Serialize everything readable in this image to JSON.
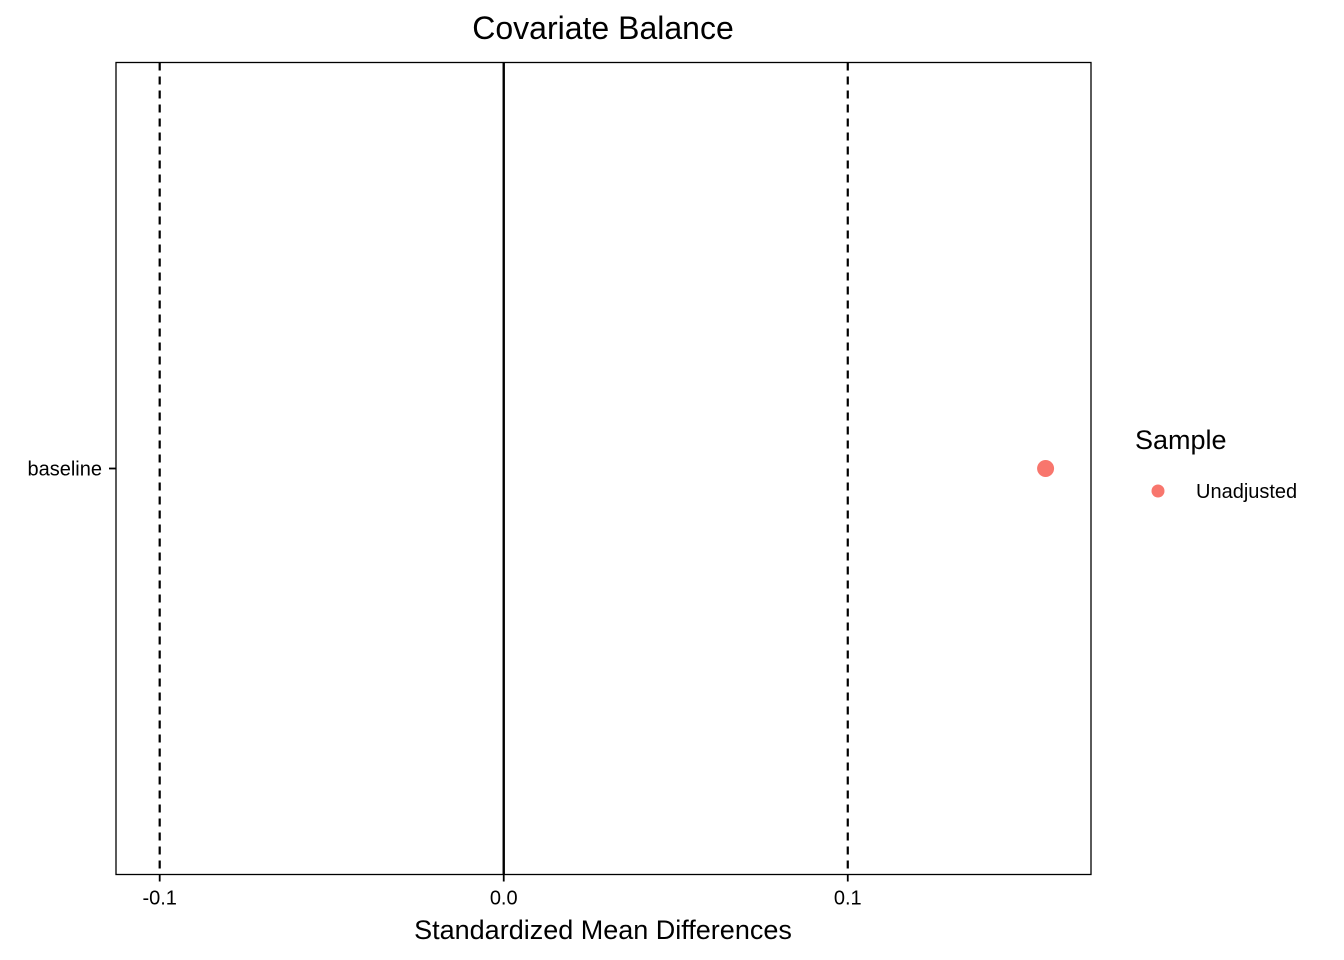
{
  "chart_data": {
    "type": "scatter",
    "title": "Covariate Balance",
    "xlabel": "Standardized Mean Differences",
    "ylabel": "",
    "xlim": [
      -0.1127,
      0.1707
    ],
    "x_ticks": [
      {
        "value": -0.1,
        "label": "-0.1"
      },
      {
        "value": 0.0,
        "label": "0.0"
      },
      {
        "value": 0.1,
        "label": "0.1"
      }
    ],
    "categories": [
      "baseline"
    ],
    "series": [
      {
        "name": "Unadjusted",
        "color": "#F8766D",
        "points": [
          {
            "category": "baseline",
            "x": 0.1575
          }
        ]
      }
    ],
    "reference_lines": [
      {
        "x": 0.0,
        "style": "solid"
      },
      {
        "x": -0.1,
        "style": "dashed"
      },
      {
        "x": 0.1,
        "style": "dashed"
      }
    ],
    "grid": false,
    "legend": {
      "title": "Sample",
      "position": "right",
      "items": [
        {
          "label": "Unadjusted",
          "color": "#F8766D"
        }
      ]
    }
  }
}
